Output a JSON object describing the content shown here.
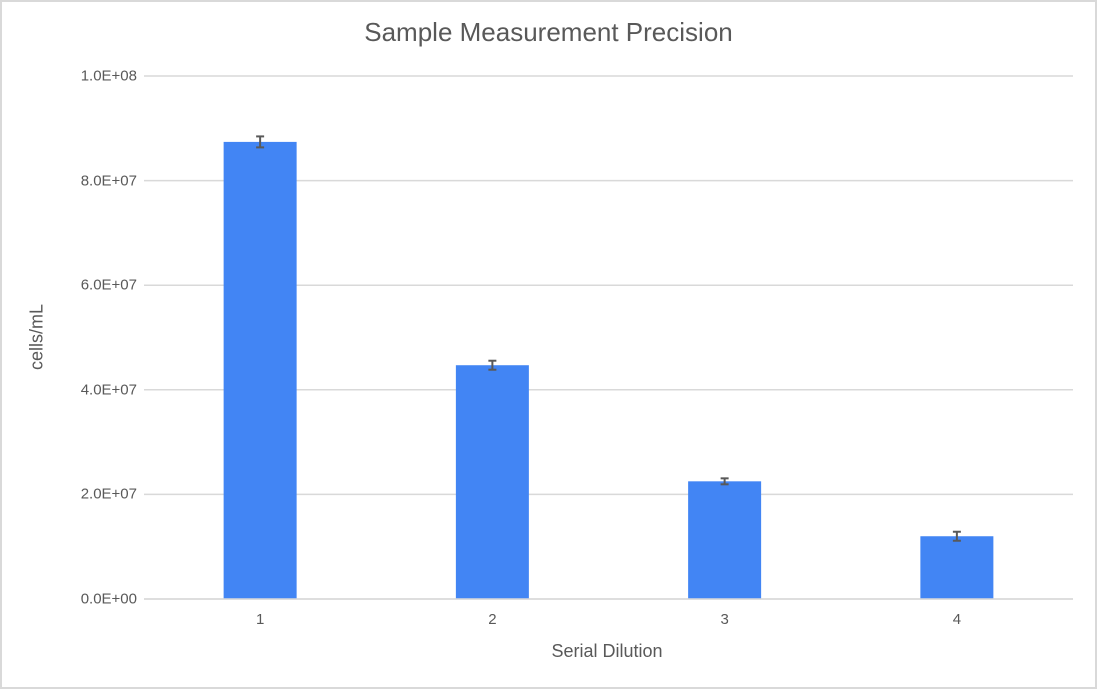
{
  "chart_data": {
    "type": "bar",
    "title": "Sample Measurement Precision",
    "xlabel": "Serial Dilution",
    "ylabel": "cells/mL",
    "categories": [
      "1",
      "2",
      "3",
      "4"
    ],
    "values": [
      87400000,
      44700000,
      22500000,
      12000000
    ],
    "error_bars": [
      1050000,
      860000,
      570000,
      860000
    ],
    "ylim": [
      0,
      100000000
    ],
    "yticks": [
      "0.0E+00",
      "2.0E+07",
      "4.0E+07",
      "6.0E+07",
      "8.0E+07",
      "1.0E+08"
    ],
    "ytick_values": [
      0,
      20000000,
      40000000,
      60000000,
      80000000,
      100000000
    ],
    "grid": true,
    "legend": null,
    "colors": {
      "bar": "#4285f4",
      "error_bar": "#595959",
      "grid": "#d9d9d9",
      "text": "#595959"
    }
  }
}
